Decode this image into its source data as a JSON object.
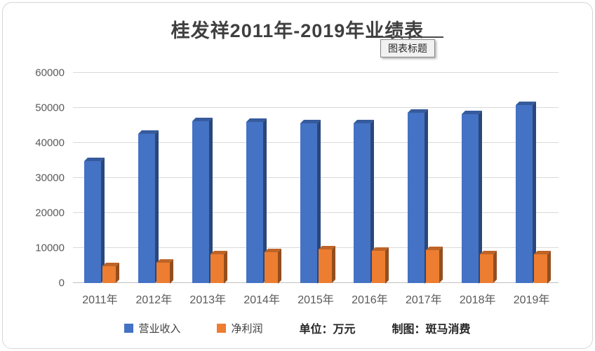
{
  "chart": {
    "title": "桂发祥2011年-2019年业绩表",
    "tooltip": "图表标题",
    "legend": {
      "revenue": "营业收入",
      "profit": "净利润"
    },
    "unit_note": "单位：万元",
    "credit_note": "制图：斑马消费"
  },
  "chart_data": {
    "type": "bar",
    "title": "桂发祥2011年-2019年业绩表",
    "categories": [
      "2011年",
      "2012年",
      "2013年",
      "2014年",
      "2015年",
      "2016年",
      "2017年",
      "2018年",
      "2019年"
    ],
    "series": [
      {
        "name": "营业收入",
        "color": "#4472C4",
        "values": [
          34800,
          42600,
          46300,
          46000,
          45700,
          45600,
          48700,
          48300,
          50800
        ]
      },
      {
        "name": "净利润",
        "color": "#ED7D31",
        "values": [
          4800,
          5900,
          8300,
          8900,
          9600,
          9300,
          9400,
          8200,
          8300
        ]
      }
    ],
    "xlabel": "",
    "ylabel": "",
    "ylim": [
      0,
      60000
    ],
    "yticks": [
      0,
      10000,
      20000,
      30000,
      40000,
      50000,
      60000
    ],
    "grid": true,
    "legend_position": "bottom"
  }
}
